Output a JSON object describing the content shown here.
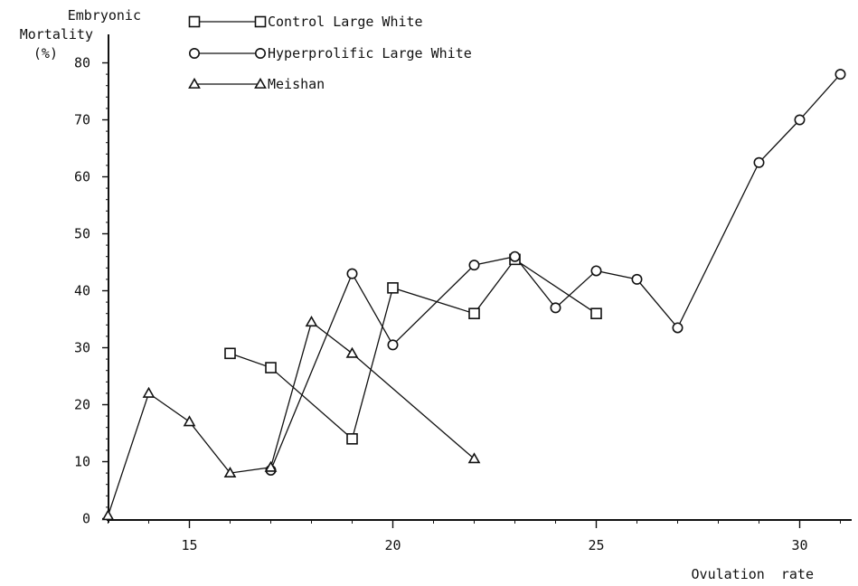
{
  "chart_data": {
    "type": "line",
    "ylabel_lines": [
      "Embryonic",
      "Mortality",
      "(%)"
    ],
    "xlabel": "Ovulation  rate",
    "xlim": [
      13,
      31.3
    ],
    "ylim": [
      0,
      80
    ],
    "x_ticks": [
      15,
      20,
      25,
      30
    ],
    "y_ticks": [
      0,
      10,
      20,
      30,
      40,
      50,
      60,
      70,
      80
    ],
    "grid": false,
    "legend_position": "top-left",
    "series": [
      {
        "name": "Control Large White",
        "marker": "square",
        "x": [
          16,
          17,
          19,
          20,
          22,
          23,
          25
        ],
        "y": [
          29,
          26.5,
          14,
          40.5,
          36,
          45.5,
          36
        ]
      },
      {
        "name": "Hyperprolific Large White",
        "marker": "circle",
        "x": [
          17,
          19,
          20,
          22,
          23,
          24,
          25,
          26,
          27,
          29,
          30,
          31
        ],
        "y": [
          8.5,
          43,
          30.5,
          44.5,
          46,
          37,
          43.5,
          42,
          33.5,
          62.5,
          70,
          78
        ]
      },
      {
        "name": "Meishan",
        "marker": "triangle",
        "x": [
          13,
          14,
          15,
          16,
          17,
          18,
          19,
          22
        ],
        "y": [
          0.5,
          22,
          17,
          8,
          9,
          34.5,
          29,
          10.5
        ]
      }
    ]
  }
}
